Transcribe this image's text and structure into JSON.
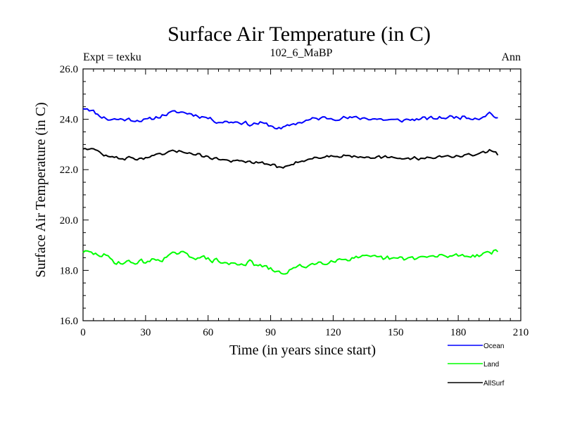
{
  "chart_data": {
    "type": "line",
    "title": "Surface Air Temperature (in C)",
    "subtitle": "102_6_MaBP",
    "left_label": "Expt = texku",
    "right_label": "Ann",
    "xlabel": "Time (in years since start)",
    "ylabel": "Surface Air Temperature (in C)",
    "xlim": [
      0,
      210
    ],
    "ylim": [
      16,
      26
    ],
    "xticks": [
      0,
      30,
      60,
      90,
      120,
      150,
      180,
      210
    ],
    "xtick_labels": [
      "0",
      "30",
      "60",
      "90",
      "120",
      "150",
      "180",
      "210"
    ],
    "yticks": [
      16,
      18,
      20,
      22,
      24,
      26
    ],
    "ytick_labels": [
      "16.0",
      "18.0",
      "20.0",
      "22.0",
      "24.0",
      "26.0"
    ],
    "grid": false,
    "series": [
      {
        "name": "Ocean",
        "color": "#0000ff",
        "anchors_x": [
          0,
          2,
          4,
          8,
          12,
          20,
          30,
          40,
          45,
          50,
          60,
          65,
          75,
          80,
          85,
          90,
          95,
          100,
          105,
          110,
          115,
          120,
          135,
          150,
          170,
          180,
          190,
          195,
          199
        ],
        "anchors_y": [
          24.45,
          24.45,
          24.35,
          24.15,
          24.0,
          24.0,
          23.95,
          24.2,
          24.3,
          24.25,
          24.05,
          23.9,
          23.9,
          23.8,
          23.85,
          23.75,
          23.6,
          23.8,
          23.9,
          24.0,
          24.05,
          24.05,
          24.05,
          23.95,
          24.05,
          24.1,
          24.05,
          24.25,
          24.05
        ],
        "noise": 0.11,
        "seed": 11
      },
      {
        "name": "Land",
        "color": "#00ff00",
        "anchors_x": [
          0,
          5,
          10,
          15,
          20,
          30,
          40,
          45,
          50,
          60,
          70,
          80,
          90,
          95,
          100,
          110,
          120,
          130,
          140,
          150,
          160,
          170,
          180,
          190,
          195,
          199
        ],
        "anchors_y": [
          18.75,
          18.65,
          18.6,
          18.35,
          18.3,
          18.35,
          18.5,
          18.7,
          18.6,
          18.45,
          18.25,
          18.3,
          18.05,
          17.85,
          18.05,
          18.25,
          18.4,
          18.5,
          18.5,
          18.45,
          18.5,
          18.55,
          18.6,
          18.6,
          18.75,
          18.75
        ],
        "noise": 0.14,
        "seed": 29
      },
      {
        "name": "AllSurf",
        "color": "#000000",
        "anchors_x": [
          0,
          3,
          8,
          12,
          20,
          30,
          40,
          46,
          50,
          60,
          70,
          80,
          90,
          96,
          100,
          110,
          120,
          130,
          140,
          150,
          160,
          170,
          180,
          190,
          195,
          199
        ],
        "anchors_y": [
          22.85,
          22.85,
          22.7,
          22.5,
          22.45,
          22.45,
          22.65,
          22.75,
          22.7,
          22.5,
          22.35,
          22.3,
          22.2,
          22.05,
          22.25,
          22.45,
          22.55,
          22.55,
          22.5,
          22.45,
          22.45,
          22.5,
          22.55,
          22.6,
          22.75,
          22.6
        ],
        "noise": 0.09,
        "seed": 47
      }
    ],
    "legend": {
      "placement": "bottom-right",
      "entries": [
        "Ocean",
        "Land",
        "AllSurf"
      ]
    }
  }
}
